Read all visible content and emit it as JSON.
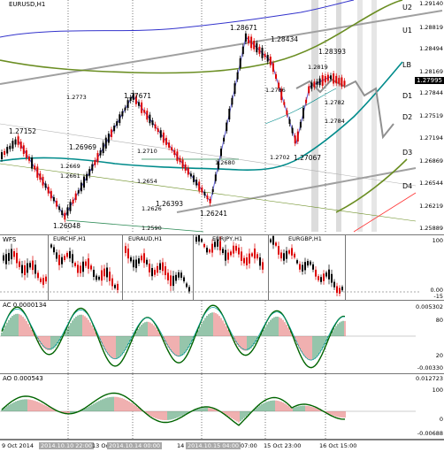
{
  "main": {
    "title": "EURUSD,H1",
    "current_price": "1.27995",
    "price_axis": [
      "1.29140",
      "1.28819",
      "1.28494",
      "1.28169",
      "1.27844",
      "1.27519",
      "1.27194",
      "1.26869",
      "1.26544",
      "1.26219",
      "1.25889"
    ],
    "levels": [
      "U2",
      "U1",
      "LB",
      "D1",
      "D2",
      "D3",
      "D4"
    ],
    "annotations": [
      "1.28671",
      "1.28434",
      "1.28393",
      "1.2819",
      "1.2786",
      "1.2782",
      "1.2784",
      "1.2702",
      "1.27067",
      "1.27671",
      "1.2773",
      "1.2710",
      "1.27152",
      "1.26969",
      "1.2669",
      "1.2661",
      "1.2654",
      "1.2680",
      "1.26393",
      "1.2626",
      "1.26241",
      "1.26048",
      "1.2590"
    ]
  },
  "cross": {
    "title": "WFS",
    "panels": [
      "EURCHF,H1",
      "EURAUD,H1",
      "EURJPY,H1",
      "EURGBP,H1"
    ],
    "axis": [
      "100",
      "0.00",
      "-15"
    ]
  },
  "ac": {
    "title": "AC 0.0000134",
    "axis": [
      "0.005302",
      "80",
      "20",
      "-0.00330"
    ]
  },
  "ao": {
    "title": "AO 0.000543",
    "axis": [
      "0.012723",
      "100",
      "0",
      "-0.00688"
    ]
  },
  "xaxis": {
    "labels": [
      "9 Oct 2014",
      "2014.10.10 22:00",
      "13 Oct",
      "2014.10.14 00:00",
      "14",
      "2014.10.15 04:00",
      "07:00",
      "15 Oct 23:00",
      "16 Oct 15:00"
    ]
  },
  "colors": {
    "up_candle": "#000000",
    "down_candle": "#dd0000",
    "teal_ma": "#008b8b",
    "olive_ma": "#6b8e23",
    "zigzag": "#5b5bd6",
    "channel": "#a0a0a0",
    "level_red": "#ff3333"
  }
}
